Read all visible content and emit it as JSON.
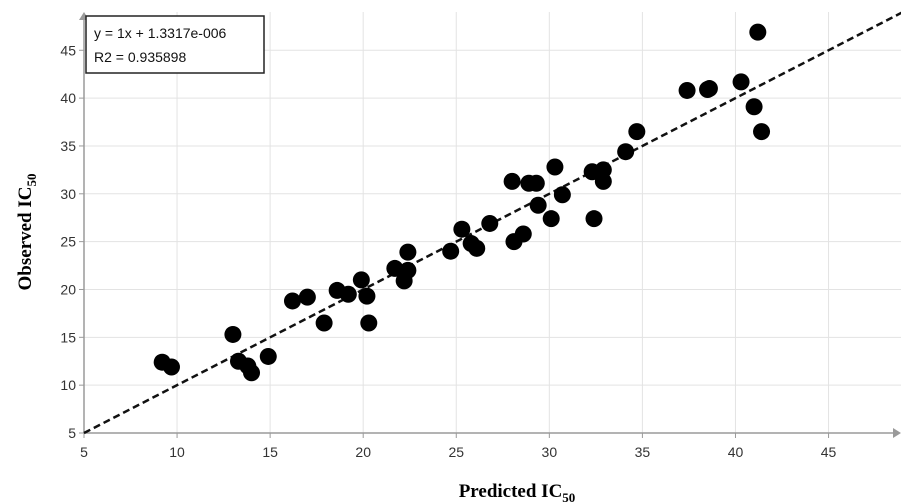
{
  "chart_data": {
    "type": "scatter",
    "xlabel": "Predicted IC",
    "xlabel_sub": "50",
    "ylabel": "Observed IC",
    "ylabel_sub": "50",
    "xlim": [
      5,
      49
    ],
    "ylim": [
      5,
      49
    ],
    "xticks": [
      5,
      10,
      15,
      20,
      25,
      30,
      35,
      40,
      45
    ],
    "yticks": [
      5,
      10,
      15,
      20,
      25,
      30,
      35,
      40,
      45
    ],
    "grid": true,
    "annotation": {
      "line1": "y = 1x + 1.3317e-006",
      "line2": "R2 = 0.935898"
    },
    "fit_line": {
      "slope": 1,
      "intercept": 0,
      "style": "dashed"
    },
    "colors": {
      "points": "#000000",
      "grid": "#e3e3e3",
      "axis": "#9a9a9a",
      "fit": "#111111"
    },
    "points": [
      {
        "x": 9.2,
        "y": 12.4
      },
      {
        "x": 9.7,
        "y": 11.9
      },
      {
        "x": 13.0,
        "y": 15.3
      },
      {
        "x": 13.3,
        "y": 12.5
      },
      {
        "x": 13.8,
        "y": 12.0
      },
      {
        "x": 14.0,
        "y": 11.3
      },
      {
        "x": 14.9,
        "y": 13.0
      },
      {
        "x": 16.2,
        "y": 18.8
      },
      {
        "x": 17.0,
        "y": 19.2
      },
      {
        "x": 17.9,
        "y": 16.5
      },
      {
        "x": 18.6,
        "y": 19.9
      },
      {
        "x": 19.2,
        "y": 19.5
      },
      {
        "x": 19.9,
        "y": 21.0
      },
      {
        "x": 20.2,
        "y": 19.3
      },
      {
        "x": 20.3,
        "y": 16.5
      },
      {
        "x": 21.7,
        "y": 22.2
      },
      {
        "x": 22.2,
        "y": 20.9
      },
      {
        "x": 22.4,
        "y": 22.0
      },
      {
        "x": 22.4,
        "y": 23.9
      },
      {
        "x": 24.7,
        "y": 24.0
      },
      {
        "x": 25.3,
        "y": 26.3
      },
      {
        "x": 25.8,
        "y": 24.8
      },
      {
        "x": 26.1,
        "y": 24.3
      },
      {
        "x": 26.8,
        "y": 26.9
      },
      {
        "x": 28.0,
        "y": 31.3
      },
      {
        "x": 28.1,
        "y": 25.0
      },
      {
        "x": 28.6,
        "y": 25.8
      },
      {
        "x": 28.9,
        "y": 31.1
      },
      {
        "x": 29.3,
        "y": 31.1
      },
      {
        "x": 29.4,
        "y": 28.8
      },
      {
        "x": 30.1,
        "y": 27.4
      },
      {
        "x": 30.3,
        "y": 32.8
      },
      {
        "x": 30.7,
        "y": 29.9
      },
      {
        "x": 32.3,
        "y": 32.3
      },
      {
        "x": 32.4,
        "y": 27.4
      },
      {
        "x": 32.9,
        "y": 32.5
      },
      {
        "x": 32.9,
        "y": 31.3
      },
      {
        "x": 34.1,
        "y": 34.4
      },
      {
        "x": 34.7,
        "y": 36.5
      },
      {
        "x": 37.4,
        "y": 40.8
      },
      {
        "x": 38.5,
        "y": 40.9
      },
      {
        "x": 38.6,
        "y": 41.0
      },
      {
        "x": 40.3,
        "y": 41.7
      },
      {
        "x": 41.0,
        "y": 39.1
      },
      {
        "x": 41.2,
        "y": 46.9
      },
      {
        "x": 41.4,
        "y": 36.5
      }
    ]
  }
}
